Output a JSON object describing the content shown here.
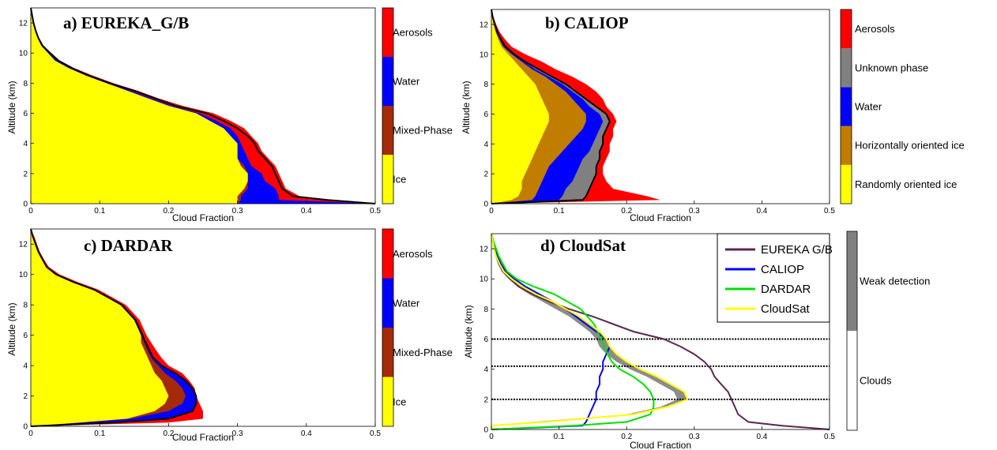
{
  "chart_data": [
    {
      "id": "a",
      "type": "area",
      "title": "a) EUREKA_G/B",
      "xlabel": "Cloud Fraction",
      "ylabel": "Altitude (km)",
      "xlim": [
        0,
        0.5
      ],
      "ylim": [
        0,
        13
      ],
      "xticks": [
        "0",
        "0.1",
        "0.2",
        "0.3",
        "0.4",
        "0.5"
      ],
      "yticks": [
        "0",
        "2",
        "4",
        "6",
        "8",
        "10",
        "12"
      ],
      "altitude": [
        0,
        0.25,
        0.5,
        1,
        1.5,
        2,
        2.5,
        3,
        3.5,
        4,
        4.5,
        5,
        5.5,
        6,
        6.5,
        7,
        7.5,
        8,
        8.5,
        9,
        9.5,
        10,
        10.5,
        11,
        11.5,
        12,
        12.5,
        13
      ],
      "cumulative": [
        [
          0.3,
          0.3,
          0.3,
          0.31,
          0.315,
          0.315,
          0.305,
          0.3,
          0.3,
          0.3,
          0.29,
          0.28,
          0.26,
          0.24,
          0.2,
          0.17,
          0.14,
          0.11,
          0.08,
          0.055,
          0.035,
          0.025,
          0.015,
          0.01,
          0.006,
          0.003,
          0.001,
          0
        ],
        [
          0.3,
          0.305,
          0.305,
          0.315,
          0.315,
          0.315,
          0.31,
          0.3,
          0.3,
          0.3,
          0.29,
          0.28,
          0.26,
          0.24,
          0.2,
          0.17,
          0.14,
          0.11,
          0.08,
          0.055,
          0.035,
          0.025,
          0.015,
          0.01,
          0.006,
          0.003,
          0.001,
          0
        ],
        [
          0.5,
          0.36,
          0.36,
          0.355,
          0.34,
          0.335,
          0.32,
          0.315,
          0.31,
          0.305,
          0.3,
          0.29,
          0.27,
          0.245,
          0.205,
          0.175,
          0.145,
          0.115,
          0.085,
          0.06,
          0.04,
          0.028,
          0.017,
          0.011,
          0.007,
          0.004,
          0.002,
          0
        ],
        [
          0.5,
          0.44,
          0.39,
          0.37,
          0.365,
          0.36,
          0.355,
          0.345,
          0.335,
          0.33,
          0.32,
          0.31,
          0.29,
          0.265,
          0.22,
          0.185,
          0.155,
          0.12,
          0.09,
          0.063,
          0.042,
          0.03,
          0.018,
          0.012,
          0.008,
          0.005,
          0.002,
          0
        ]
      ],
      "outline": [
        0.5,
        0.43,
        0.38,
        0.365,
        0.36,
        0.355,
        0.35,
        0.34,
        0.33,
        0.325,
        0.315,
        0.3,
        0.28,
        0.255,
        0.21,
        0.18,
        0.15,
        0.115,
        0.085,
        0.06,
        0.04,
        0.028,
        0.017,
        0.011,
        0.007,
        0.004,
        0.002,
        0
      ],
      "colorbar": [
        {
          "label": "Ice",
          "color": "#ffff00"
        },
        {
          "label": "Mixed-Phase",
          "color": "#a52a0a"
        },
        {
          "label": "Water",
          "color": "#0000ff"
        },
        {
          "label": "Aerosols",
          "color": "#ff0000"
        }
      ]
    },
    {
      "id": "b",
      "type": "area",
      "title": "b) CALIOP",
      "xlabel": "Cloud Fraction",
      "ylabel": "Altitude (km)",
      "xlim": [
        0,
        0.5
      ],
      "ylim": [
        0,
        13
      ],
      "xticks": [
        "0",
        "0.1",
        "0.2",
        "0.3",
        "0.4",
        "0.5"
      ],
      "yticks": [
        "0",
        "2",
        "4",
        "6",
        "8",
        "10",
        "12"
      ],
      "altitude": [
        0,
        0.25,
        0.5,
        1,
        1.5,
        2,
        2.5,
        3,
        3.5,
        4,
        4.5,
        5,
        5.5,
        6,
        6.5,
        7,
        7.5,
        8,
        8.5,
        9,
        9.5,
        10,
        10.5,
        11,
        11.5,
        12,
        12.5,
        13
      ],
      "cumulative": [
        [
          0.0,
          0.03,
          0.04,
          0.045,
          0.045,
          0.05,
          0.055,
          0.06,
          0.065,
          0.07,
          0.075,
          0.08,
          0.085,
          0.085,
          0.08,
          0.075,
          0.07,
          0.065,
          0.055,
          0.045,
          0.035,
          0.025,
          0.015,
          0.01,
          0.006,
          0.003,
          0.001,
          0
        ],
        [
          0.0,
          0.06,
          0.065,
          0.07,
          0.075,
          0.08,
          0.085,
          0.095,
          0.105,
          0.115,
          0.125,
          0.135,
          0.14,
          0.14,
          0.13,
          0.12,
          0.11,
          0.095,
          0.08,
          0.06,
          0.045,
          0.03,
          0.018,
          0.012,
          0.007,
          0.004,
          0.002,
          0
        ],
        [
          0.0,
          0.1,
          0.105,
          0.11,
          0.12,
          0.125,
          0.13,
          0.135,
          0.145,
          0.15,
          0.155,
          0.16,
          0.165,
          0.16,
          0.145,
          0.135,
          0.12,
          0.105,
          0.085,
          0.065,
          0.048,
          0.032,
          0.02,
          0.013,
          0.008,
          0.005,
          0.002,
          0
        ],
        [
          0.0,
          0.135,
          0.14,
          0.145,
          0.15,
          0.155,
          0.155,
          0.16,
          0.16,
          0.165,
          0.165,
          0.17,
          0.175,
          0.17,
          0.155,
          0.14,
          0.125,
          0.11,
          0.09,
          0.07,
          0.05,
          0.034,
          0.021,
          0.014,
          0.009,
          0.005,
          0.002,
          0
        ],
        [
          0.0,
          0.25,
          0.23,
          0.18,
          0.17,
          0.165,
          0.165,
          0.17,
          0.175,
          0.175,
          0.18,
          0.18,
          0.185,
          0.18,
          0.17,
          0.165,
          0.155,
          0.14,
          0.12,
          0.095,
          0.075,
          0.05,
          0.03,
          0.02,
          0.012,
          0.007,
          0.003,
          0
        ]
      ],
      "outline": [
        0.0,
        0.135,
        0.14,
        0.145,
        0.15,
        0.155,
        0.155,
        0.16,
        0.16,
        0.165,
        0.165,
        0.17,
        0.175,
        0.17,
        0.155,
        0.14,
        0.125,
        0.11,
        0.09,
        0.07,
        0.05,
        0.034,
        0.021,
        0.014,
        0.009,
        0.005,
        0.002,
        0
      ],
      "colorbar": [
        {
          "label": "Randomly oriented ice",
          "color": "#ffff00"
        },
        {
          "label": "Horizontally oriented ice",
          "color": "#c07d00"
        },
        {
          "label": "Water",
          "color": "#0000ff"
        },
        {
          "label": "Unknown phase",
          "color": "#808080"
        },
        {
          "label": "Aerosols",
          "color": "#ff0000"
        }
      ]
    },
    {
      "id": "c",
      "type": "area",
      "title": "c) DARDAR",
      "xlabel": "Cloud Fraction",
      "ylabel": "Altitude (km)",
      "xlim": [
        0,
        0.5
      ],
      "ylim": [
        0,
        13
      ],
      "xticks": [
        "0",
        "0.1",
        "0.2",
        "0.3",
        "0.4",
        "0.5"
      ],
      "yticks": [
        "0",
        "2",
        "4",
        "6",
        "8",
        "10",
        "12"
      ],
      "altitude": [
        0,
        0.25,
        0.5,
        1,
        1.5,
        2,
        2.5,
        3,
        3.5,
        4,
        4.5,
        5,
        5.5,
        6,
        6.5,
        7,
        7.5,
        8,
        8.5,
        9,
        9.5,
        10,
        10.5,
        11,
        11.5,
        12,
        12.5,
        13
      ],
      "cumulative": [
        [
          0.0,
          0.07,
          0.14,
          0.18,
          0.195,
          0.2,
          0.195,
          0.19,
          0.18,
          0.175,
          0.17,
          0.165,
          0.16,
          0.16,
          0.155,
          0.15,
          0.14,
          0.13,
          0.11,
          0.09,
          0.06,
          0.035,
          0.022,
          0.016,
          0.01,
          0.006,
          0.003,
          0
        ],
        [
          0.0,
          0.075,
          0.145,
          0.2,
          0.22,
          0.225,
          0.22,
          0.21,
          0.195,
          0.185,
          0.175,
          0.17,
          0.165,
          0.16,
          0.155,
          0.15,
          0.14,
          0.13,
          0.11,
          0.09,
          0.06,
          0.035,
          0.022,
          0.016,
          0.01,
          0.006,
          0.003,
          0
        ],
        [
          0.0,
          0.12,
          0.2,
          0.235,
          0.24,
          0.24,
          0.235,
          0.225,
          0.21,
          0.19,
          0.178,
          0.172,
          0.167,
          0.162,
          0.157,
          0.152,
          0.142,
          0.132,
          0.112,
          0.092,
          0.062,
          0.037,
          0.023,
          0.017,
          0.011,
          0.007,
          0.003,
          0
        ],
        [
          0.0,
          0.2,
          0.25,
          0.25,
          0.245,
          0.24,
          0.238,
          0.23,
          0.22,
          0.2,
          0.19,
          0.182,
          0.175,
          0.168,
          0.163,
          0.158,
          0.148,
          0.138,
          0.118,
          0.098,
          0.068,
          0.042,
          0.026,
          0.019,
          0.013,
          0.009,
          0.005,
          0
        ]
      ],
      "outline": [
        0.0,
        0.12,
        0.2,
        0.235,
        0.24,
        0.24,
        0.235,
        0.225,
        0.21,
        0.19,
        0.178,
        0.172,
        0.167,
        0.162,
        0.157,
        0.152,
        0.142,
        0.132,
        0.112,
        0.092,
        0.062,
        0.037,
        0.023,
        0.017,
        0.011,
        0.007,
        0.003,
        0
      ],
      "colorbar": [
        {
          "label": "Ice",
          "color": "#ffff00"
        },
        {
          "label": "Mixed-Phase",
          "color": "#a52a0a"
        },
        {
          "label": "Water",
          "color": "#0000ff"
        },
        {
          "label": "Aerosols",
          "color": "#ff0000"
        }
      ]
    },
    {
      "id": "d",
      "type": "line",
      "title": "d) CloudSat",
      "xlabel": "Cloud Fraction",
      "ylabel": "Altitude (km)",
      "xlim": [
        0,
        0.5
      ],
      "ylim": [
        0,
        13
      ],
      "xticks": [
        "0",
        "0.1",
        "0.2",
        "0.3",
        "0.4",
        "0.5"
      ],
      "yticks": [
        "0",
        "2",
        "4",
        "6",
        "8",
        "10",
        "12"
      ],
      "altitude": [
        0,
        0.25,
        0.5,
        1,
        1.5,
        2,
        2.5,
        3,
        3.5,
        4,
        4.5,
        5,
        5.5,
        6,
        6.5,
        7,
        7.5,
        8,
        8.5,
        9,
        9.5,
        10,
        10.5,
        11,
        11.5,
        12,
        12.5,
        13
      ],
      "series": [
        {
          "name": "EUREKA G/B",
          "color": "#5a2a4a",
          "values": [
            0.5,
            0.43,
            0.38,
            0.365,
            0.36,
            0.355,
            0.35,
            0.34,
            0.33,
            0.325,
            0.315,
            0.3,
            0.28,
            0.255,
            0.21,
            0.18,
            0.15,
            0.115,
            0.085,
            0.06,
            0.04,
            0.028,
            0.017,
            0.011,
            0.007,
            0.004,
            0.002,
            0
          ]
        },
        {
          "name": "CALIOP",
          "color": "#0000ff",
          "values": [
            0.0,
            0.135,
            0.14,
            0.145,
            0.15,
            0.155,
            0.155,
            0.16,
            0.16,
            0.165,
            0.165,
            0.17,
            0.175,
            0.17,
            0.155,
            0.14,
            0.125,
            0.11,
            0.09,
            0.07,
            0.05,
            0.034,
            0.021,
            0.014,
            0.009,
            0.005,
            0.002,
            0
          ]
        },
        {
          "name": "DARDAR",
          "color": "#00e000",
          "values": [
            0.0,
            0.12,
            0.2,
            0.235,
            0.24,
            0.24,
            0.235,
            0.225,
            0.21,
            0.19,
            0.178,
            0.172,
            0.167,
            0.162,
            0.157,
            0.152,
            0.142,
            0.132,
            0.112,
            0.092,
            0.062,
            0.037,
            0.023,
            0.017,
            0.011,
            0.007,
            0.003,
            0
          ]
        },
        {
          "name": "CloudSat",
          "color": "#ffff00",
          "values": [
            0.0,
            0.0,
            0.08,
            0.21,
            0.26,
            0.29,
            0.285,
            0.265,
            0.245,
            0.22,
            0.2,
            0.185,
            0.175,
            0.17,
            0.16,
            0.145,
            0.13,
            0.11,
            0.09,
            0.065,
            0.045,
            0.03,
            0.018,
            0.012,
            0.007,
            0.004,
            0.002,
            0
          ]
        }
      ],
      "weak_detection_band": {
        "color": "#8c8c8c",
        "lower": [
          0.0,
          0.0,
          0.06,
          0.2,
          0.25,
          0.275,
          0.27,
          0.25,
          0.23,
          0.205,
          0.185,
          0.17,
          0.16,
          0.155,
          0.145,
          0.13,
          0.115,
          0.095,
          0.075,
          0.055,
          0.038,
          0.025,
          0.015,
          0.01,
          0.006,
          0.003,
          0.001,
          0
        ]
      },
      "hlines": [
        2,
        4.2,
        6
      ],
      "colorbar": [
        {
          "label": "Clouds",
          "color": "#ffffff"
        },
        {
          "label": "Weak detection",
          "color": "#808080"
        }
      ]
    }
  ]
}
